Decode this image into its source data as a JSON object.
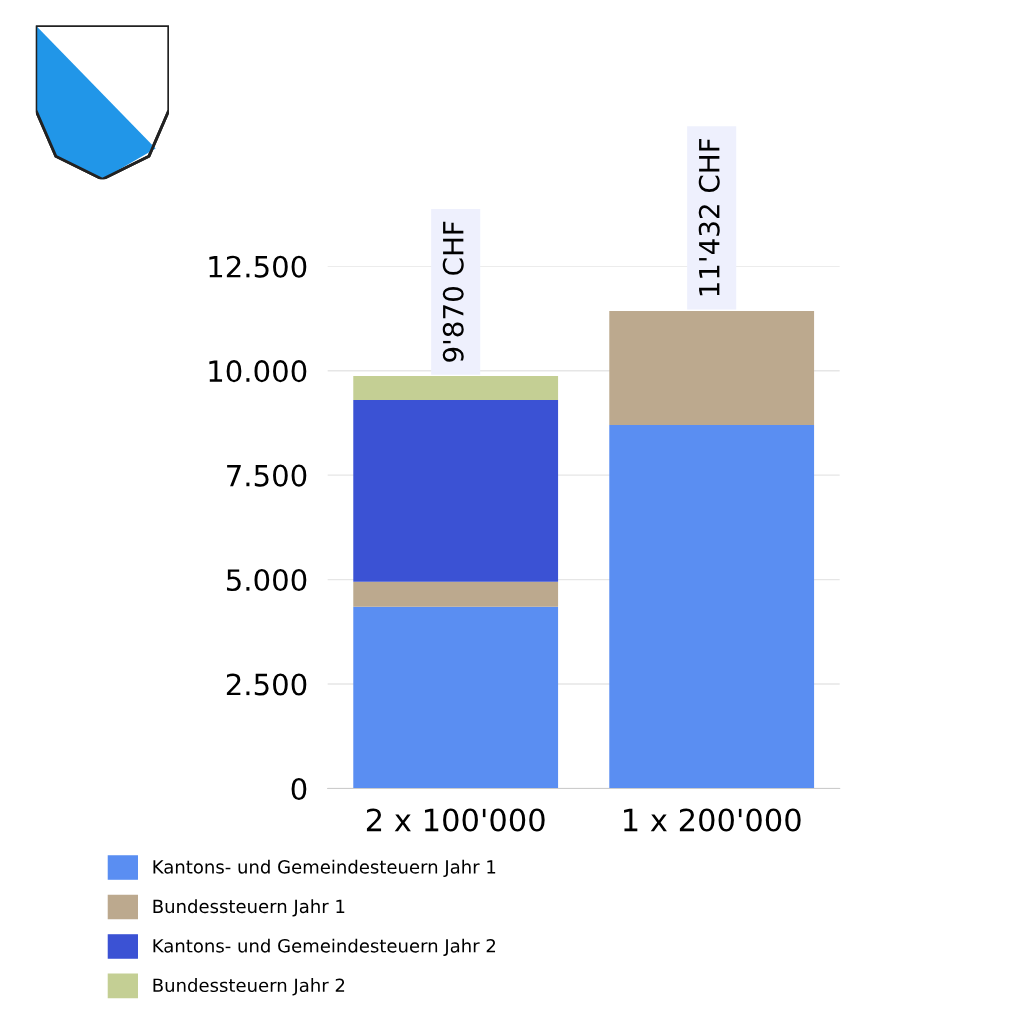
{
  "chart_data": {
    "type": "bar",
    "stacked": true,
    "categories": [
      "2 x 100'000",
      "1 x 200'000"
    ],
    "series": [
      {
        "name": "Kantons- und Gemeindesteuern Jahr 1",
        "color": "#5a8ef2",
        "values": [
          4350,
          8700
        ]
      },
      {
        "name": "Bundessteuern Jahr 1",
        "color": "#bca98e",
        "values": [
          600,
          2730
        ]
      },
      {
        "name": "Kantons- und Gemeindesteuern Jahr 2",
        "color": "#3b52d4",
        "values": [
          4350,
          null
        ]
      },
      {
        "name": "Bundessteuern Jahr 2",
        "color": "#c4cf94",
        "values": [
          570,
          null
        ]
      }
    ],
    "totals": [
      "9'870 CHF",
      "11'432 CHF"
    ],
    "ylim": [
      0,
      12500
    ],
    "yticks": [
      0,
      {
        "value": 2500,
        "label": "2.500"
      },
      {
        "value": 5000,
        "label": "5.000"
      },
      {
        "value": 7500,
        "label": "7.500"
      },
      {
        "value": 10000,
        "label": "10.000"
      },
      {
        "value": 12500,
        "label": "12.500"
      }
    ],
    "grid": "y",
    "legend": "bottom"
  }
}
